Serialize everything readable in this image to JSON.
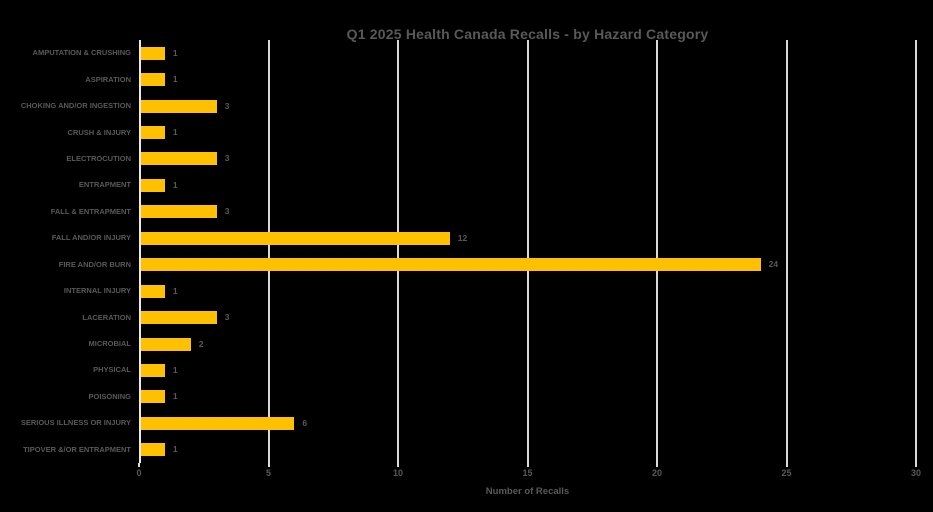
{
  "chart_data": {
    "type": "bar",
    "orientation": "horizontal",
    "title": "Q1 2025 Health Canada Recalls - by Hazard Category",
    "xlabel": "Number of Recalls",
    "ylabel": "",
    "categories": [
      "AMPUTATION & CRUSHING",
      "ASPIRATION",
      "CHOKING AND/OR INGESTION",
      "CRUSH & INJURY",
      "ELECTROCUTION",
      "ENTRAPMENT",
      "FALL & ENTRAPMENT",
      "FALL AND/OR INJURY",
      "FIRE AND/OR BURN",
      "INTERNAL INJURY",
      "LACERATION",
      "MICROBIAL",
      "PHYSICAL",
      "POISONING",
      "SERIOUS ILLNESS OR INJURY",
      "TIPOVER &/OR ENTRAPMENT"
    ],
    "values": [
      1,
      1,
      3,
      1,
      3,
      1,
      3,
      12,
      24,
      1,
      3,
      2,
      1,
      1,
      6,
      1
    ],
    "data_labels": [
      "1",
      "1",
      "3",
      "1",
      "3",
      "1",
      "3",
      "12",
      "24",
      "1",
      "3",
      "2",
      "1",
      "1",
      "6",
      "1"
    ],
    "xlim": [
      0,
      30
    ],
    "xticks": [
      0,
      5,
      10,
      15,
      20,
      25,
      30
    ],
    "grid": true,
    "legend": "none",
    "bar_color": "#FFC000",
    "text_color": "#595959",
    "gridline_color": "#D9D9D9",
    "background_color": "#000000"
  }
}
